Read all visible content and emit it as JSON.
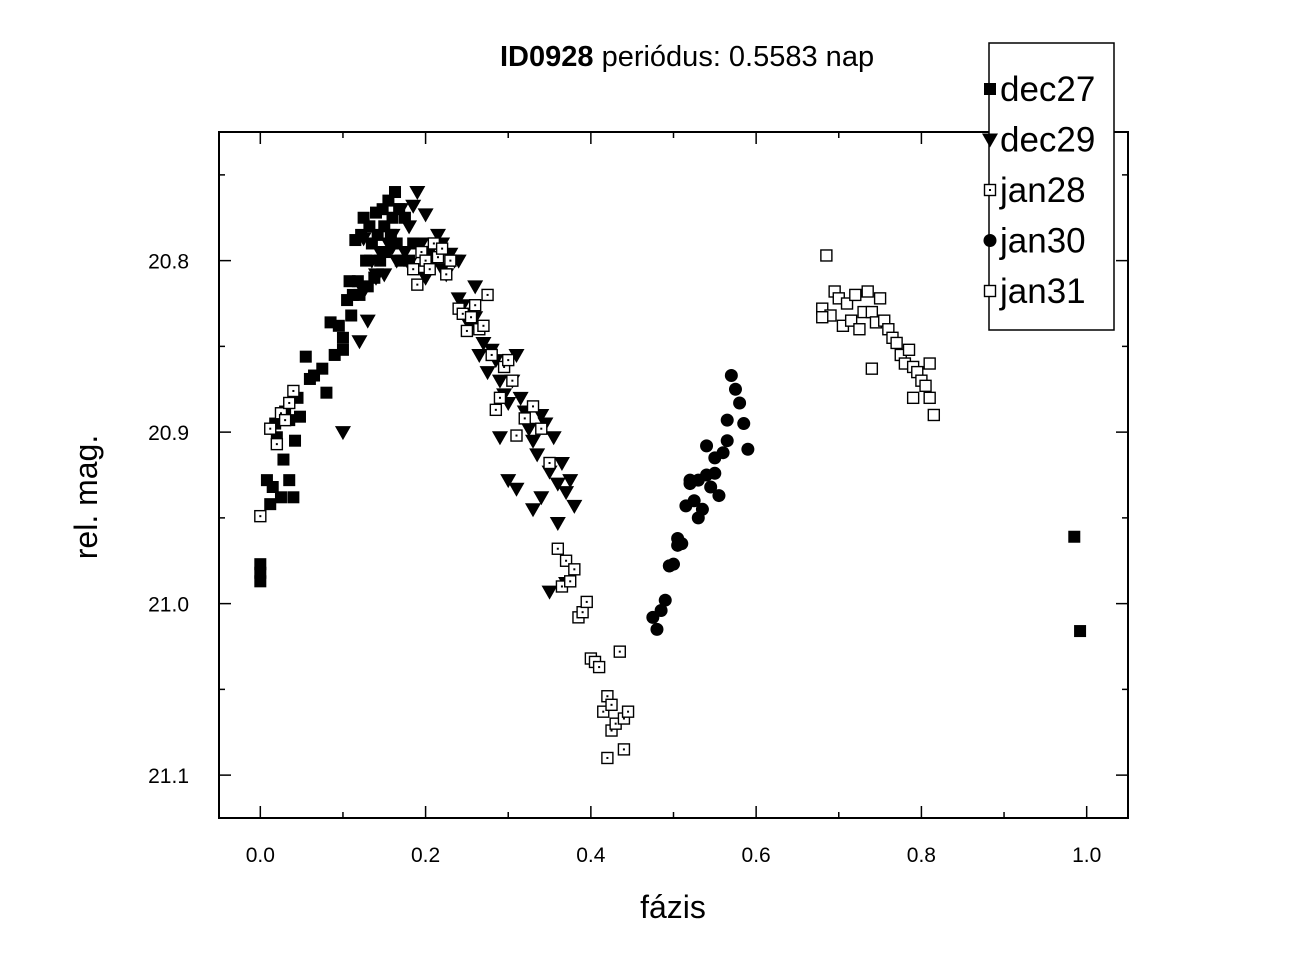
{
  "chart_data": {
    "type": "scatter",
    "title_id": "ID0928",
    "title_rest": " periódus: 0.5583 nap",
    "xlabel": "fázis",
    "ylabel": "rel. mag.",
    "xlim": [
      -0.05,
      1.05
    ],
    "ylim": [
      21.125,
      20.725
    ],
    "y_inverted": true,
    "grid": false,
    "legend_position": "top-right",
    "x_major_ticks": [
      0.0,
      0.2,
      0.4,
      0.6,
      0.8,
      1.0
    ],
    "x_tick_labels": [
      "0.0",
      "0.2",
      "0.4",
      "0.6",
      "0.8",
      "1.0"
    ],
    "x_minor_ticks": [
      0.1,
      0.3,
      0.5,
      0.7,
      0.9
    ],
    "y_major_ticks": [
      20.8,
      20.9,
      21.0,
      21.1
    ],
    "y_tick_labels": [
      "20.8",
      "20.9",
      "21.0",
      "21.1"
    ],
    "y_minor_ticks": [
      20.75,
      20.85,
      20.95,
      21.05
    ],
    "series": [
      {
        "name": "dec27",
        "marker": "filled-square",
        "x": [
          0.0,
          0.0,
          0.0,
          0.008,
          0.012,
          0.015,
          0.018,
          0.02,
          0.025,
          0.028,
          0.03,
          0.035,
          0.035,
          0.04,
          0.042,
          0.045,
          0.048,
          0.055,
          0.06,
          0.065,
          0.075,
          0.08,
          0.085,
          0.09,
          0.095,
          0.1,
          0.1,
          0.105,
          0.108,
          0.11,
          0.112,
          0.115,
          0.118,
          0.12,
          0.122,
          0.125,
          0.128,
          0.13,
          0.132,
          0.135,
          0.138,
          0.14,
          0.142,
          0.145,
          0.148,
          0.15,
          0.152,
          0.155,
          0.158,
          0.16,
          0.163,
          0.165,
          0.168,
          0.17,
          0.175,
          0.18,
          0.185,
          0.985,
          0.992
        ],
        "y": [
          20.977,
          20.982,
          20.987,
          20.928,
          20.942,
          20.932,
          20.895,
          20.903,
          20.938,
          20.916,
          20.888,
          20.928,
          20.893,
          20.938,
          20.905,
          20.88,
          20.891,
          20.856,
          20.869,
          20.867,
          20.863,
          20.877,
          20.836,
          20.855,
          20.838,
          20.852,
          20.845,
          20.823,
          20.812,
          20.832,
          20.82,
          20.788,
          20.812,
          20.82,
          20.785,
          20.775,
          20.8,
          20.815,
          20.78,
          20.79,
          20.81,
          20.772,
          20.785,
          20.8,
          20.77,
          20.78,
          20.795,
          20.765,
          20.785,
          20.775,
          20.76,
          20.79,
          20.77,
          20.8,
          20.775,
          20.8,
          20.79,
          20.961,
          21.016
        ]
      },
      {
        "name": "dec29",
        "marker": "filled-triangle-down",
        "x": [
          0.1,
          0.12,
          0.125,
          0.13,
          0.135,
          0.14,
          0.145,
          0.15,
          0.155,
          0.16,
          0.165,
          0.17,
          0.175,
          0.18,
          0.185,
          0.19,
          0.195,
          0.2,
          0.205,
          0.21,
          0.215,
          0.22,
          0.225,
          0.23,
          0.235,
          0.24,
          0.245,
          0.25,
          0.255,
          0.26,
          0.265,
          0.27,
          0.275,
          0.28,
          0.285,
          0.29,
          0.295,
          0.3,
          0.305,
          0.31,
          0.315,
          0.32,
          0.325,
          0.33,
          0.335,
          0.34,
          0.345,
          0.35,
          0.355,
          0.36,
          0.365,
          0.37,
          0.375,
          0.38,
          0.35,
          0.37,
          0.3,
          0.29,
          0.31,
          0.33,
          0.34,
          0.36,
          0.26,
          0.24,
          0.22,
          0.2,
          0.18,
          0.16,
          0.14,
          0.125
        ],
        "y": [
          20.9,
          20.847,
          20.818,
          20.835,
          20.8,
          20.81,
          20.795,
          20.808,
          20.79,
          20.785,
          20.8,
          20.77,
          20.795,
          20.78,
          20.768,
          20.76,
          20.79,
          20.773,
          20.795,
          20.8,
          20.785,
          20.79,
          20.808,
          20.796,
          20.8,
          20.822,
          20.826,
          20.835,
          20.838,
          20.833,
          20.855,
          20.848,
          20.865,
          20.852,
          20.858,
          20.87,
          20.878,
          20.883,
          20.87,
          20.855,
          20.88,
          20.888,
          20.898,
          20.905,
          20.913,
          20.89,
          20.895,
          20.923,
          20.903,
          20.93,
          20.918,
          20.935,
          20.928,
          20.943,
          20.993,
          20.988,
          20.928,
          20.903,
          20.933,
          20.945,
          20.938,
          20.953,
          20.815,
          20.8,
          20.805,
          20.81,
          20.802,
          20.792,
          20.808,
          20.787
        ]
      },
      {
        "name": "jan28",
        "marker": "open-square-dot",
        "x": [
          0.0,
          0.012,
          0.02,
          0.025,
          0.03,
          0.035,
          0.04,
          0.185,
          0.19,
          0.195,
          0.2,
          0.205,
          0.21,
          0.215,
          0.22,
          0.225,
          0.23,
          0.24,
          0.245,
          0.25,
          0.255,
          0.26,
          0.265,
          0.27,
          0.275,
          0.28,
          0.285,
          0.29,
          0.295,
          0.3,
          0.305,
          0.31,
          0.32,
          0.33,
          0.34,
          0.35,
          0.36,
          0.365,
          0.37,
          0.375,
          0.38,
          0.385,
          0.39,
          0.395,
          0.4,
          0.405,
          0.41,
          0.415,
          0.42,
          0.42,
          0.425,
          0.425,
          0.43,
          0.435,
          0.44,
          0.44,
          0.445
        ],
        "y": [
          20.949,
          20.898,
          20.907,
          20.889,
          20.893,
          20.883,
          20.876,
          20.805,
          20.814,
          20.795,
          20.8,
          20.805,
          20.79,
          20.798,
          20.793,
          20.808,
          20.8,
          20.828,
          20.831,
          20.841,
          20.833,
          20.826,
          20.84,
          20.838,
          20.82,
          20.855,
          20.887,
          20.88,
          20.862,
          20.858,
          20.87,
          20.902,
          20.892,
          20.885,
          20.898,
          20.918,
          20.968,
          20.99,
          20.975,
          20.987,
          20.98,
          21.008,
          21.005,
          20.999,
          21.032,
          21.034,
          21.037,
          21.063,
          21.054,
          21.09,
          21.059,
          21.074,
          21.07,
          21.028,
          21.067,
          21.085,
          21.063
        ]
      },
      {
        "name": "jan30",
        "marker": "filled-circle",
        "x": [
          0.475,
          0.48,
          0.485,
          0.49,
          0.495,
          0.5,
          0.505,
          0.51,
          0.515,
          0.52,
          0.525,
          0.53,
          0.535,
          0.54,
          0.545,
          0.55,
          0.555,
          0.56,
          0.565,
          0.57,
          0.575,
          0.58,
          0.585,
          0.59,
          0.495,
          0.505,
          0.52,
          0.53,
          0.54,
          0.55,
          0.565
        ],
        "y": [
          21.008,
          21.015,
          21.004,
          20.998,
          20.978,
          20.977,
          20.962,
          20.965,
          20.943,
          20.93,
          20.94,
          20.928,
          20.945,
          20.908,
          20.932,
          20.924,
          20.937,
          20.912,
          20.893,
          20.867,
          20.875,
          20.883,
          20.895,
          20.91,
          20.978,
          20.966,
          20.928,
          20.95,
          20.925,
          20.915,
          20.905
        ]
      },
      {
        "name": "jan31",
        "marker": "open-square",
        "x": [
          0.68,
          0.685,
          0.69,
          0.695,
          0.7,
          0.705,
          0.71,
          0.715,
          0.72,
          0.725,
          0.73,
          0.735,
          0.74,
          0.745,
          0.75,
          0.755,
          0.76,
          0.765,
          0.77,
          0.775,
          0.78,
          0.785,
          0.79,
          0.795,
          0.8,
          0.805,
          0.81,
          0.815,
          0.74,
          0.79,
          0.81,
          0.68
        ],
        "y": [
          20.828,
          20.797,
          20.832,
          20.818,
          20.822,
          20.838,
          20.825,
          20.835,
          20.82,
          20.84,
          20.83,
          20.818,
          20.83,
          20.836,
          20.822,
          20.835,
          20.84,
          20.845,
          20.848,
          20.855,
          20.86,
          20.852,
          20.862,
          20.865,
          20.87,
          20.873,
          20.88,
          20.89,
          20.863,
          20.88,
          20.86,
          20.833
        ]
      }
    ]
  }
}
